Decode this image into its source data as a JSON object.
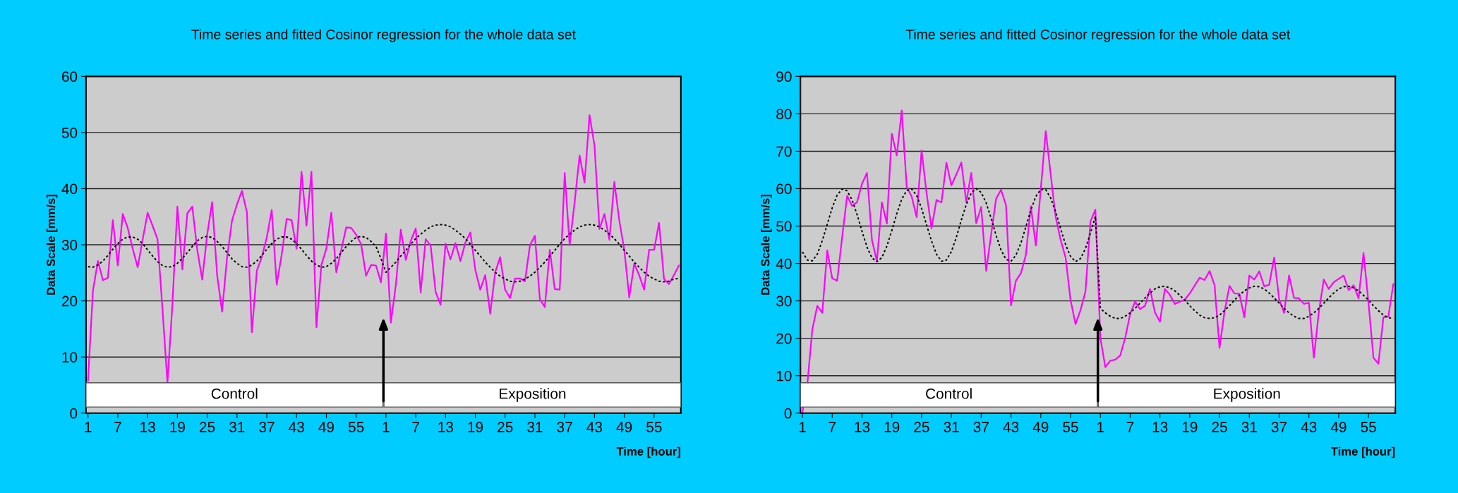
{
  "chart_data": [
    {
      "type": "line",
      "title": "Time series and fitted Cosinor regression for the whole data set",
      "xlabel": "Time [hour]",
      "ylabel": "Data Scale [mm/s]",
      "ylim": [
        0,
        60
      ],
      "yticks": [
        0,
        10,
        20,
        30,
        40,
        50,
        60
      ],
      "grid": "y",
      "marker": "none",
      "categories": [
        "1",
        null,
        null,
        null,
        null,
        null,
        "7",
        null,
        null,
        null,
        null,
        null,
        "13",
        null,
        null,
        null,
        null,
        null,
        "19",
        null,
        null,
        null,
        null,
        null,
        "25",
        null,
        null,
        null,
        null,
        null,
        "31",
        null,
        null,
        null,
        null,
        null,
        "37",
        null,
        null,
        null,
        null,
        null,
        "43",
        null,
        null,
        null,
        null,
        null,
        "49",
        null,
        null,
        null,
        null,
        null,
        "55",
        null,
        null,
        null,
        null,
        null,
        "1",
        null,
        null,
        null,
        null,
        null,
        "7",
        null,
        null,
        null,
        null,
        null,
        "13",
        null,
        null,
        null,
        null,
        null,
        "19",
        null,
        null,
        null,
        null,
        null,
        "25",
        null,
        null,
        null,
        null,
        null,
        "31",
        null,
        null,
        null,
        null,
        null,
        "37",
        null,
        null,
        null,
        null,
        null,
        "43",
        null,
        null,
        null,
        null,
        null,
        "49",
        null,
        null,
        null,
        null,
        null,
        "55",
        null,
        null,
        null,
        null,
        null
      ],
      "annotations": [
        "Control",
        "Exposition"
      ],
      "series": [
        {
          "color": "#ff00ff",
          "line_style": "solid",
          "values": [
            5.8,
            21.9,
            27.1,
            23.7,
            24.1,
            34.4,
            26.3,
            35.5,
            33.0,
            29.3,
            26.0,
            30.9,
            35.7,
            33.4,
            31.0,
            18.5,
            5.4,
            19.4,
            36.8,
            25.6,
            35.6,
            36.8,
            29.1,
            23.8,
            31.8,
            37.6,
            24.6,
            18.1,
            27.7,
            34.3,
            37.2,
            39.6,
            35.8,
            14.4,
            25.4,
            27.8,
            31.3,
            36.2,
            22.9,
            28.2,
            34.6,
            34.4,
            29.3,
            43.0,
            33.4,
            43.0,
            15.3,
            26.4,
            29.3,
            35.7,
            25.1,
            29.1,
            33.1,
            33.0,
            31.8,
            30.1,
            24.5,
            26.4,
            26.3,
            23.3,
            32.0,
            16.1,
            22.9,
            32.7,
            27.3,
            30.7,
            32.9,
            21.5,
            31.0,
            29.9,
            21.6,
            19.3,
            30.2,
            27.4,
            30.3,
            27.1,
            30.4,
            32.2,
            25.5,
            22.0,
            24.6,
            17.7,
            25.1,
            27.8,
            22.0,
            20.5,
            24.0,
            24.0,
            23.5,
            29.9,
            31.6,
            20.3,
            18.9,
            29.1,
            22.1,
            22.0,
            42.8,
            29.9,
            37.6,
            45.9,
            41.1,
            53.1,
            47.7,
            32.8,
            35.5,
            30.9,
            41.2,
            34.3,
            29.1,
            20.6,
            26.6,
            24.6,
            22.0,
            29.1,
            29.1,
            33.9,
            23.9,
            23.0,
            24.6,
            26.3
          ]
        },
        {
          "color": "#000000",
          "line_style": "dotted",
          "values": [
            26.1,
            26.0,
            26.4,
            27.1,
            28.1,
            29.2,
            30.2,
            31.0,
            31.4,
            31.4,
            31.0,
            30.2,
            29.1,
            28.0,
            27.0,
            26.3,
            26.0,
            26.1,
            26.7,
            27.6,
            28.6,
            29.7,
            30.7,
            31.3,
            31.5,
            31.3,
            30.6,
            29.7,
            28.6,
            27.5,
            26.7,
            26.1,
            26.0,
            26.4,
            27.1,
            28.1,
            29.2,
            30.2,
            31.0,
            31.4,
            31.4,
            31.0,
            30.2,
            29.2,
            28.1,
            27.1,
            26.4,
            26.0,
            26.1,
            26.7,
            27.5,
            28.6,
            29.7,
            30.6,
            31.3,
            31.5,
            31.3,
            30.6,
            29.7,
            27.5,
            25.1,
            26.0,
            26.9,
            28.0,
            29.0,
            30.1,
            31.1,
            31.9,
            32.6,
            33.2,
            33.5,
            33.6,
            33.5,
            33.2,
            32.6,
            31.9,
            31.1,
            30.1,
            29.0,
            28.0,
            26.9,
            26.0,
            25.1,
            24.4,
            23.9,
            23.5,
            23.4,
            23.5,
            23.9,
            24.4,
            25.1,
            26.0,
            26.9,
            28.0,
            29.0,
            30.1,
            31.1,
            31.9,
            32.6,
            33.2,
            33.5,
            33.6,
            33.5,
            33.2,
            32.6,
            31.9,
            31.1,
            30.1,
            29.0,
            28.0,
            26.9,
            26.0,
            25.1,
            24.4,
            23.9,
            23.5,
            23.4,
            23.5,
            23.9,
            24.0
          ]
        }
      ]
    },
    {
      "type": "line",
      "title": "Time series and fitted Cosinor regression for the whole data set",
      "xlabel": "Time [hour]",
      "ylabel": "Data Scale [mm/s]",
      "ylim": [
        0,
        90
      ],
      "yticks": [
        0,
        10,
        20,
        30,
        40,
        50,
        60,
        70,
        80,
        90
      ],
      "grid": "y",
      "marker": "none",
      "categories": [
        "1",
        null,
        null,
        null,
        null,
        null,
        "7",
        null,
        null,
        null,
        null,
        null,
        "13",
        null,
        null,
        null,
        null,
        null,
        "19",
        null,
        null,
        null,
        null,
        null,
        "25",
        null,
        null,
        null,
        null,
        null,
        "31",
        null,
        null,
        null,
        null,
        null,
        "37",
        null,
        null,
        null,
        null,
        null,
        "43",
        null,
        null,
        null,
        null,
        null,
        "49",
        null,
        null,
        null,
        null,
        null,
        "55",
        null,
        null,
        null,
        null,
        null,
        "1",
        null,
        null,
        null,
        null,
        null,
        "7",
        null,
        null,
        null,
        null,
        null,
        "13",
        null,
        null,
        null,
        null,
        null,
        "19",
        null,
        null,
        null,
        null,
        null,
        "25",
        null,
        null,
        null,
        null,
        null,
        "31",
        null,
        null,
        null,
        null,
        null,
        "37",
        null,
        null,
        null,
        null,
        null,
        "43",
        null,
        null,
        null,
        null,
        null,
        "49",
        null,
        null,
        null,
        null,
        null,
        "55",
        null,
        null,
        null,
        null,
        null
      ],
      "annotations": [
        "Control",
        "Exposition"
      ],
      "series": [
        {
          "color": "#ff00ff",
          "line_style": "solid",
          "values": [
            0.3,
            7.9,
            22.4,
            28.7,
            26.8,
            43.5,
            36.0,
            35.4,
            47.0,
            58.1,
            55.4,
            56.4,
            61.3,
            64.2,
            46.3,
            40.6,
            56.3,
            50.7,
            74.7,
            68.9,
            80.9,
            60.5,
            57.9,
            52.4,
            70.2,
            58.8,
            49.4,
            57.0,
            56.3,
            66.9,
            60.9,
            63.8,
            67.0,
            56.4,
            64.2,
            50.8,
            55.1,
            38.0,
            47.7,
            57.3,
            59.7,
            55.6,
            28.8,
            35.4,
            37.4,
            42.3,
            55.3,
            44.8,
            59.8,
            75.4,
            63.8,
            52.4,
            46.3,
            41.6,
            30.2,
            23.8,
            27.5,
            32.5,
            51.2,
            54.4,
            20.1,
            12.3,
            14.0,
            14.3,
            15.4,
            20.1,
            26.5,
            29.8,
            27.8,
            28.7,
            33.2,
            26.9,
            24.4,
            33.2,
            31.6,
            29.2,
            29.8,
            30.3,
            32.0,
            34.1,
            36.2,
            35.6,
            38.0,
            34.2,
            17.4,
            27.1,
            34.0,
            32.0,
            31.9,
            25.6,
            36.8,
            35.7,
            37.9,
            33.9,
            34.3,
            41.6,
            30.5,
            26.8,
            36.8,
            30.8,
            30.7,
            29.2,
            29.5,
            14.8,
            27.1,
            35.7,
            33.2,
            35.0,
            35.9,
            36.8,
            32.9,
            34.2,
            30.7,
            42.8,
            29.5,
            14.8,
            13.2,
            25.6,
            25.8,
            34.5
          ]
        },
        {
          "color": "#000000",
          "line_style": "dotted",
          "values": [
            43.1,
            40.9,
            40.7,
            42.5,
            46.1,
            50.5,
            54.9,
            58.3,
            59.9,
            59.4,
            57.0,
            53.1,
            48.6,
            44.4,
            41.5,
            40.5,
            41.6,
            44.6,
            48.8,
            53.3,
            57.2,
            59.5,
            59.9,
            58.2,
            54.7,
            50.3,
            46.0,
            42.5,
            40.6,
            40.9,
            43.2,
            47.0,
            51.6,
            55.8,
            58.8,
            60.0,
            59.0,
            56.2,
            52.1,
            47.5,
            43.6,
            41.1,
            40.6,
            42.2,
            45.5,
            49.8,
            54.3,
            57.9,
            59.8,
            59.7,
            57.5,
            53.8,
            49.3,
            45.0,
            41.9,
            40.5,
            41.3,
            44.0,
            48.1,
            52.6,
            28.0,
            26.8,
            25.9,
            25.3,
            25.3,
            25.9,
            26.8,
            28.0,
            29.4,
            30.8,
            32.1,
            33.2,
            33.8,
            33.9,
            33.5,
            32.7,
            31.5,
            30.2,
            28.7,
            27.4,
            26.2,
            25.5,
            25.3,
            25.5,
            26.2,
            27.4,
            28.7,
            30.2,
            31.5,
            32.7,
            33.5,
            33.9,
            33.8,
            33.2,
            32.1,
            30.8,
            29.4,
            28.0,
            26.8,
            25.9,
            25.3,
            25.3,
            25.9,
            26.8,
            28.0,
            29.4,
            30.8,
            32.1,
            33.2,
            33.8,
            33.9,
            33.5,
            32.7,
            31.5,
            30.2,
            28.7,
            27.4,
            26.2,
            25.5,
            25.3
          ]
        }
      ]
    }
  ]
}
